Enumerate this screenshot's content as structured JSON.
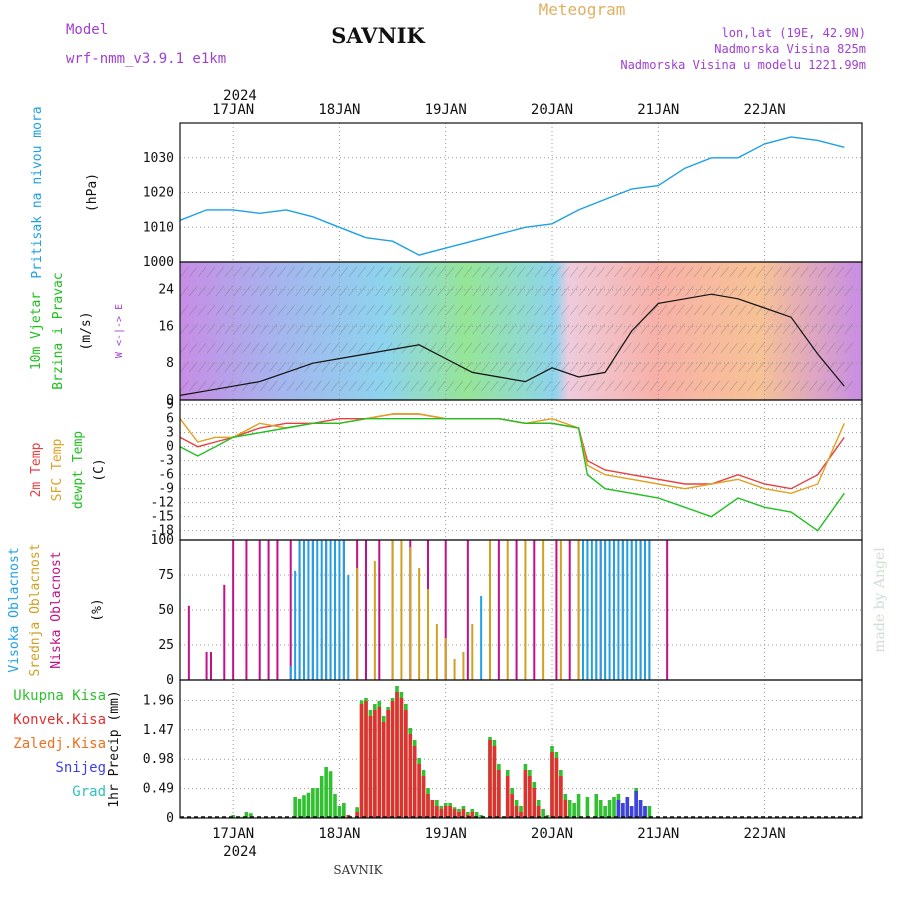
{
  "header": {
    "model_label": "Model",
    "model_name": "wrf-nmm_v3.9.1 e1km",
    "location": "SAVNIK",
    "product": "Meteogram",
    "coords": "lon,lat (19E, 42.9N)",
    "altitude": "Nadmorska Visina 825m",
    "model_altitude": "Nadmorska Visina u modelu 1221.99m",
    "watermark": "made by Angel",
    "footer_location": "SAVNIK"
  },
  "colors": {
    "pressure": "#1ea0e6",
    "temp2m": "#e84040",
    "sfc_temp": "#e0a020",
    "dewpt": "#20c020",
    "high_cloud": "#20a0e8",
    "mid_cloud": "#d0a020",
    "low_cloud": "#c0108a",
    "total_precip": "#30c030",
    "conv_precip": "#e03030",
    "frozen_precip": "#f07020",
    "snow": "#4040e0",
    "hail": "#30c0c0",
    "label_purple": "#a040d0",
    "title_orange": "#e0b060"
  },
  "time_axis": {
    "year": "2024",
    "days": [
      "17JAN",
      "18JAN",
      "19JAN",
      "20JAN",
      "21JAN",
      "22JAN"
    ],
    "start_hour_offset": -10
  },
  "chart_data": [
    {
      "type": "line",
      "panel": "pressure",
      "ylabel_1": "Pritisak na nivou mora",
      "ylabel_2": "(hPa)",
      "ylim": [
        1000,
        1040
      ],
      "yticks": [
        1000,
        1010,
        1020,
        1030
      ],
      "grid": true,
      "series": [
        {
          "x": [
            0,
            6,
            12,
            18,
            24,
            30,
            36,
            42,
            48,
            54,
            60,
            66,
            72,
            78,
            84,
            90,
            96,
            102,
            108,
            114,
            120,
            126,
            132,
            138,
            144,
            150
          ],
          "values": [
            1012,
            1015,
            1015,
            1014,
            1015,
            1013,
            1010,
            1007,
            1006,
            1002,
            1004,
            1006,
            1008,
            1010,
            1011,
            1015,
            1018,
            1021,
            1022,
            1027,
            1030,
            1030,
            1034,
            1036,
            1035,
            1033
          ]
        }
      ]
    },
    {
      "type": "line",
      "panel": "wind",
      "ylabel_1": "10m Vjetar",
      "ylabel_2": "Brzina i Pravac",
      "ylabel_3": "(m/s)",
      "compass": "W <-|-> E",
      "ylim": [
        0,
        30
      ],
      "yticks": [
        0,
        8,
        16,
        24
      ],
      "grid": true,
      "series": [
        {
          "x": [
            0,
            6,
            12,
            18,
            24,
            30,
            36,
            42,
            48,
            54,
            60,
            66,
            72,
            78,
            84,
            90,
            96,
            102,
            108,
            114,
            120,
            126,
            132,
            138,
            144,
            150
          ],
          "values": [
            1,
            2,
            3,
            4,
            6,
            8,
            9,
            10,
            11,
            12,
            9,
            6,
            5,
            4,
            7,
            5,
            6,
            15,
            21,
            22,
            23,
            22,
            20,
            18,
            10,
            3
          ]
        }
      ]
    },
    {
      "type": "line",
      "panel": "temperature",
      "ylabel_1": "2m Temp",
      "ylabel_2": "SFC Temp",
      "ylabel_3": "dewpt Temp",
      "ylabel_4": "(C)",
      "ylim": [
        -20,
        10
      ],
      "yticks": [
        -18,
        -15,
        -12,
        -9,
        -6,
        -3,
        0,
        3,
        6,
        9
      ],
      "grid": true,
      "series": [
        {
          "name": "2m Temp",
          "x": [
            0,
            4,
            8,
            12,
            18,
            24,
            30,
            36,
            42,
            48,
            54,
            60,
            66,
            72,
            78,
            84,
            90,
            92,
            96,
            102,
            108,
            114,
            120,
            126,
            132,
            138,
            144,
            150
          ],
          "values": [
            2,
            0,
            1,
            2,
            4,
            5,
            5,
            6,
            6,
            7,
            7,
            6,
            6,
            6,
            5,
            5,
            4,
            -3,
            -5,
            -6,
            -7,
            -8,
            -8,
            -6,
            -8,
            -9,
            -6,
            2
          ]
        },
        {
          "name": "SFC Temp",
          "x": [
            0,
            4,
            8,
            12,
            18,
            24,
            30,
            36,
            42,
            48,
            54,
            60,
            66,
            72,
            78,
            84,
            90,
            92,
            96,
            102,
            108,
            114,
            120,
            126,
            132,
            138,
            144,
            150
          ],
          "values": [
            6,
            1,
            2,
            2,
            5,
            4,
            5,
            5,
            6,
            7,
            7,
            6,
            6,
            6,
            5,
            6,
            4,
            -4,
            -6,
            -7,
            -8,
            -9,
            -8,
            -7,
            -9,
            -10,
            -8,
            5
          ]
        },
        {
          "name": "dewpt Temp",
          "x": [
            0,
            4,
            8,
            12,
            18,
            24,
            30,
            36,
            42,
            48,
            54,
            60,
            66,
            72,
            78,
            84,
            90,
            92,
            96,
            102,
            108,
            114,
            120,
            126,
            132,
            138,
            144,
            150
          ],
          "values": [
            0,
            -2,
            0,
            2,
            3,
            4,
            5,
            5,
            6,
            6,
            6,
            6,
            6,
            6,
            5,
            5,
            4,
            -6,
            -9,
            -10,
            -11,
            -13,
            -15,
            -11,
            -13,
            -14,
            -18,
            -10
          ]
        }
      ]
    },
    {
      "type": "bar",
      "panel": "clouds",
      "ylabel_1": "Visoka Oblacnost",
      "ylabel_2": "Srednja Oblacnost",
      "ylabel_3": "Niska Oblacnost",
      "ylabel_4": "(%)",
      "ylim": [
        0,
        100
      ],
      "yticks": [
        0,
        25,
        50,
        75,
        100
      ],
      "grid": true,
      "series": [
        {
          "name": "Niska Oblacnost",
          "x": [
            2,
            6,
            7,
            10,
            12,
            15,
            18,
            20,
            22,
            25,
            27,
            30,
            33,
            37,
            40,
            42,
            45,
            48,
            52,
            56,
            60,
            65,
            72,
            76,
            80,
            85,
            88,
            90,
            95,
            100,
            104,
            106,
            110
          ],
          "values": [
            53,
            20,
            20,
            68,
            100,
            100,
            100,
            100,
            100,
            100,
            100,
            100,
            100,
            100,
            100,
            100,
            100,
            100,
            100,
            100,
            100,
            100,
            100,
            100,
            100,
            100,
            100,
            100,
            100,
            100,
            100,
            100,
            100
          ]
        },
        {
          "name": "Srednja Oblacnost",
          "x": [
            28,
            29,
            30,
            32,
            34,
            36,
            40,
            44,
            48,
            50,
            52,
            54,
            56,
            58,
            60,
            62,
            64,
            66,
            70,
            74,
            78,
            82,
            86,
            90,
            92,
            94,
            96,
            98,
            100,
            102,
            104,
            106
          ],
          "values": [
            30,
            25,
            30,
            30,
            25,
            35,
            80,
            85,
            100,
            100,
            95,
            80,
            65,
            40,
            30,
            15,
            20,
            40,
            100,
            100,
            100,
            100,
            100,
            100,
            100,
            100,
            100,
            100,
            100,
            100,
            100,
            100
          ]
        },
        {
          "name": "Visoka Oblacnost",
          "x": [
            25,
            26,
            27,
            28,
            29,
            30,
            31,
            32,
            33,
            34,
            35,
            36,
            37,
            38,
            68,
            91,
            92,
            93,
            94,
            95,
            96,
            97,
            98,
            99,
            100,
            101,
            102,
            103,
            104,
            105,
            106
          ],
          "values": [
            10,
            78,
            100,
            100,
            100,
            100,
            100,
            100,
            100,
            100,
            100,
            100,
            100,
            75,
            60,
            100,
            100,
            100,
            100,
            100,
            100,
            100,
            100,
            100,
            100,
            100,
            100,
            100,
            100,
            100,
            100
          ]
        }
      ]
    },
    {
      "type": "bar",
      "panel": "precip",
      "ylabel": "1hr Precip (mm)",
      "legend": [
        "Ukupna Kisa",
        "Konvek.Kisa",
        "Zaledj.Kisa",
        "Snijeg",
        "Grad"
      ],
      "ylim": [
        0,
        2.3
      ],
      "yticks": [
        0,
        0.49,
        0.98,
        1.47,
        1.96
      ],
      "grid": true,
      "series": [
        {
          "name": "Ukupna Kisa",
          "x": [
            12,
            14,
            15,
            16,
            26,
            27,
            28,
            29,
            30,
            31,
            32,
            33,
            34,
            35,
            36,
            37,
            38,
            40,
            41,
            42,
            43,
            44,
            45,
            46,
            47,
            48,
            49,
            50,
            51,
            52,
            53,
            54,
            55,
            56,
            57,
            58,
            59,
            60,
            61,
            62,
            63,
            64,
            65,
            66,
            67,
            68,
            70,
            71,
            72,
            74,
            75,
            76,
            77,
            78,
            79,
            80,
            81,
            82,
            83,
            84,
            85,
            86,
            87,
            88,
            89,
            90,
            92,
            94,
            95,
            96,
            97,
            98,
            99,
            100,
            101,
            102,
            103,
            104,
            105,
            106
          ],
          "values": [
            0.05,
            0.02,
            0.1,
            0.08,
            0.35,
            0.32,
            0.38,
            0.42,
            0.5,
            0.5,
            0.7,
            0.85,
            0.78,
            0.4,
            0.2,
            0.25,
            0.05,
            0.18,
            1.96,
            2.0,
            1.8,
            1.9,
            1.95,
            1.7,
            1.85,
            2.0,
            2.2,
            2.1,
            1.9,
            1.5,
            1.3,
            1.0,
            0.8,
            0.5,
            0.3,
            0.3,
            0.2,
            0.25,
            0.25,
            0.18,
            0.15,
            0.2,
            0.1,
            0.15,
            0.1,
            0.05,
            1.35,
            1.3,
            0.9,
            0.8,
            0.5,
            0.3,
            0.2,
            0.9,
            0.8,
            0.6,
            0.3,
            0.15,
            0.05,
            1.2,
            1.1,
            0.8,
            0.4,
            0.3,
            0.25,
            0.4,
            0.35,
            0.4,
            0.3,
            0.2,
            0.3,
            0.35,
            0.4,
            0.25,
            0.35,
            0.2,
            0.5,
            0.3,
            0.2,
            0.2
          ]
        },
        {
          "name": "Konvek.Kisa",
          "x": [
            38,
            40,
            41,
            42,
            43,
            44,
            45,
            46,
            47,
            48,
            49,
            50,
            51,
            52,
            53,
            54,
            55,
            56,
            57,
            58,
            59,
            60,
            61,
            62,
            63,
            64,
            65,
            66,
            70,
            71,
            72,
            74,
            75,
            76,
            77,
            78,
            79,
            80,
            81,
            84,
            85,
            86,
            87
          ],
          "values": [
            0.05,
            0.1,
            1.9,
            1.95,
            1.7,
            1.8,
            1.85,
            1.6,
            1.8,
            1.95,
            2.1,
            2.0,
            1.8,
            1.4,
            1.2,
            0.9,
            0.7,
            0.4,
            0.3,
            0.2,
            0.15,
            0.2,
            0.2,
            0.15,
            0.1,
            0.15,
            0.05,
            0.1,
            1.3,
            1.2,
            0.8,
            0.7,
            0.4,
            0.2,
            0.1,
            0.8,
            0.7,
            0.5,
            0.2,
            1.1,
            1.0,
            0.7,
            0.3
          ]
        },
        {
          "name": "Snijeg",
          "x": [
            95,
            96,
            97,
            98,
            99,
            100,
            101,
            102,
            103,
            104,
            105,
            106
          ],
          "values": [
            0,
            0,
            0,
            0,
            0.3,
            0.25,
            0.35,
            0.2,
            0.45,
            0.3,
            0.2,
            0
          ]
        }
      ]
    }
  ]
}
